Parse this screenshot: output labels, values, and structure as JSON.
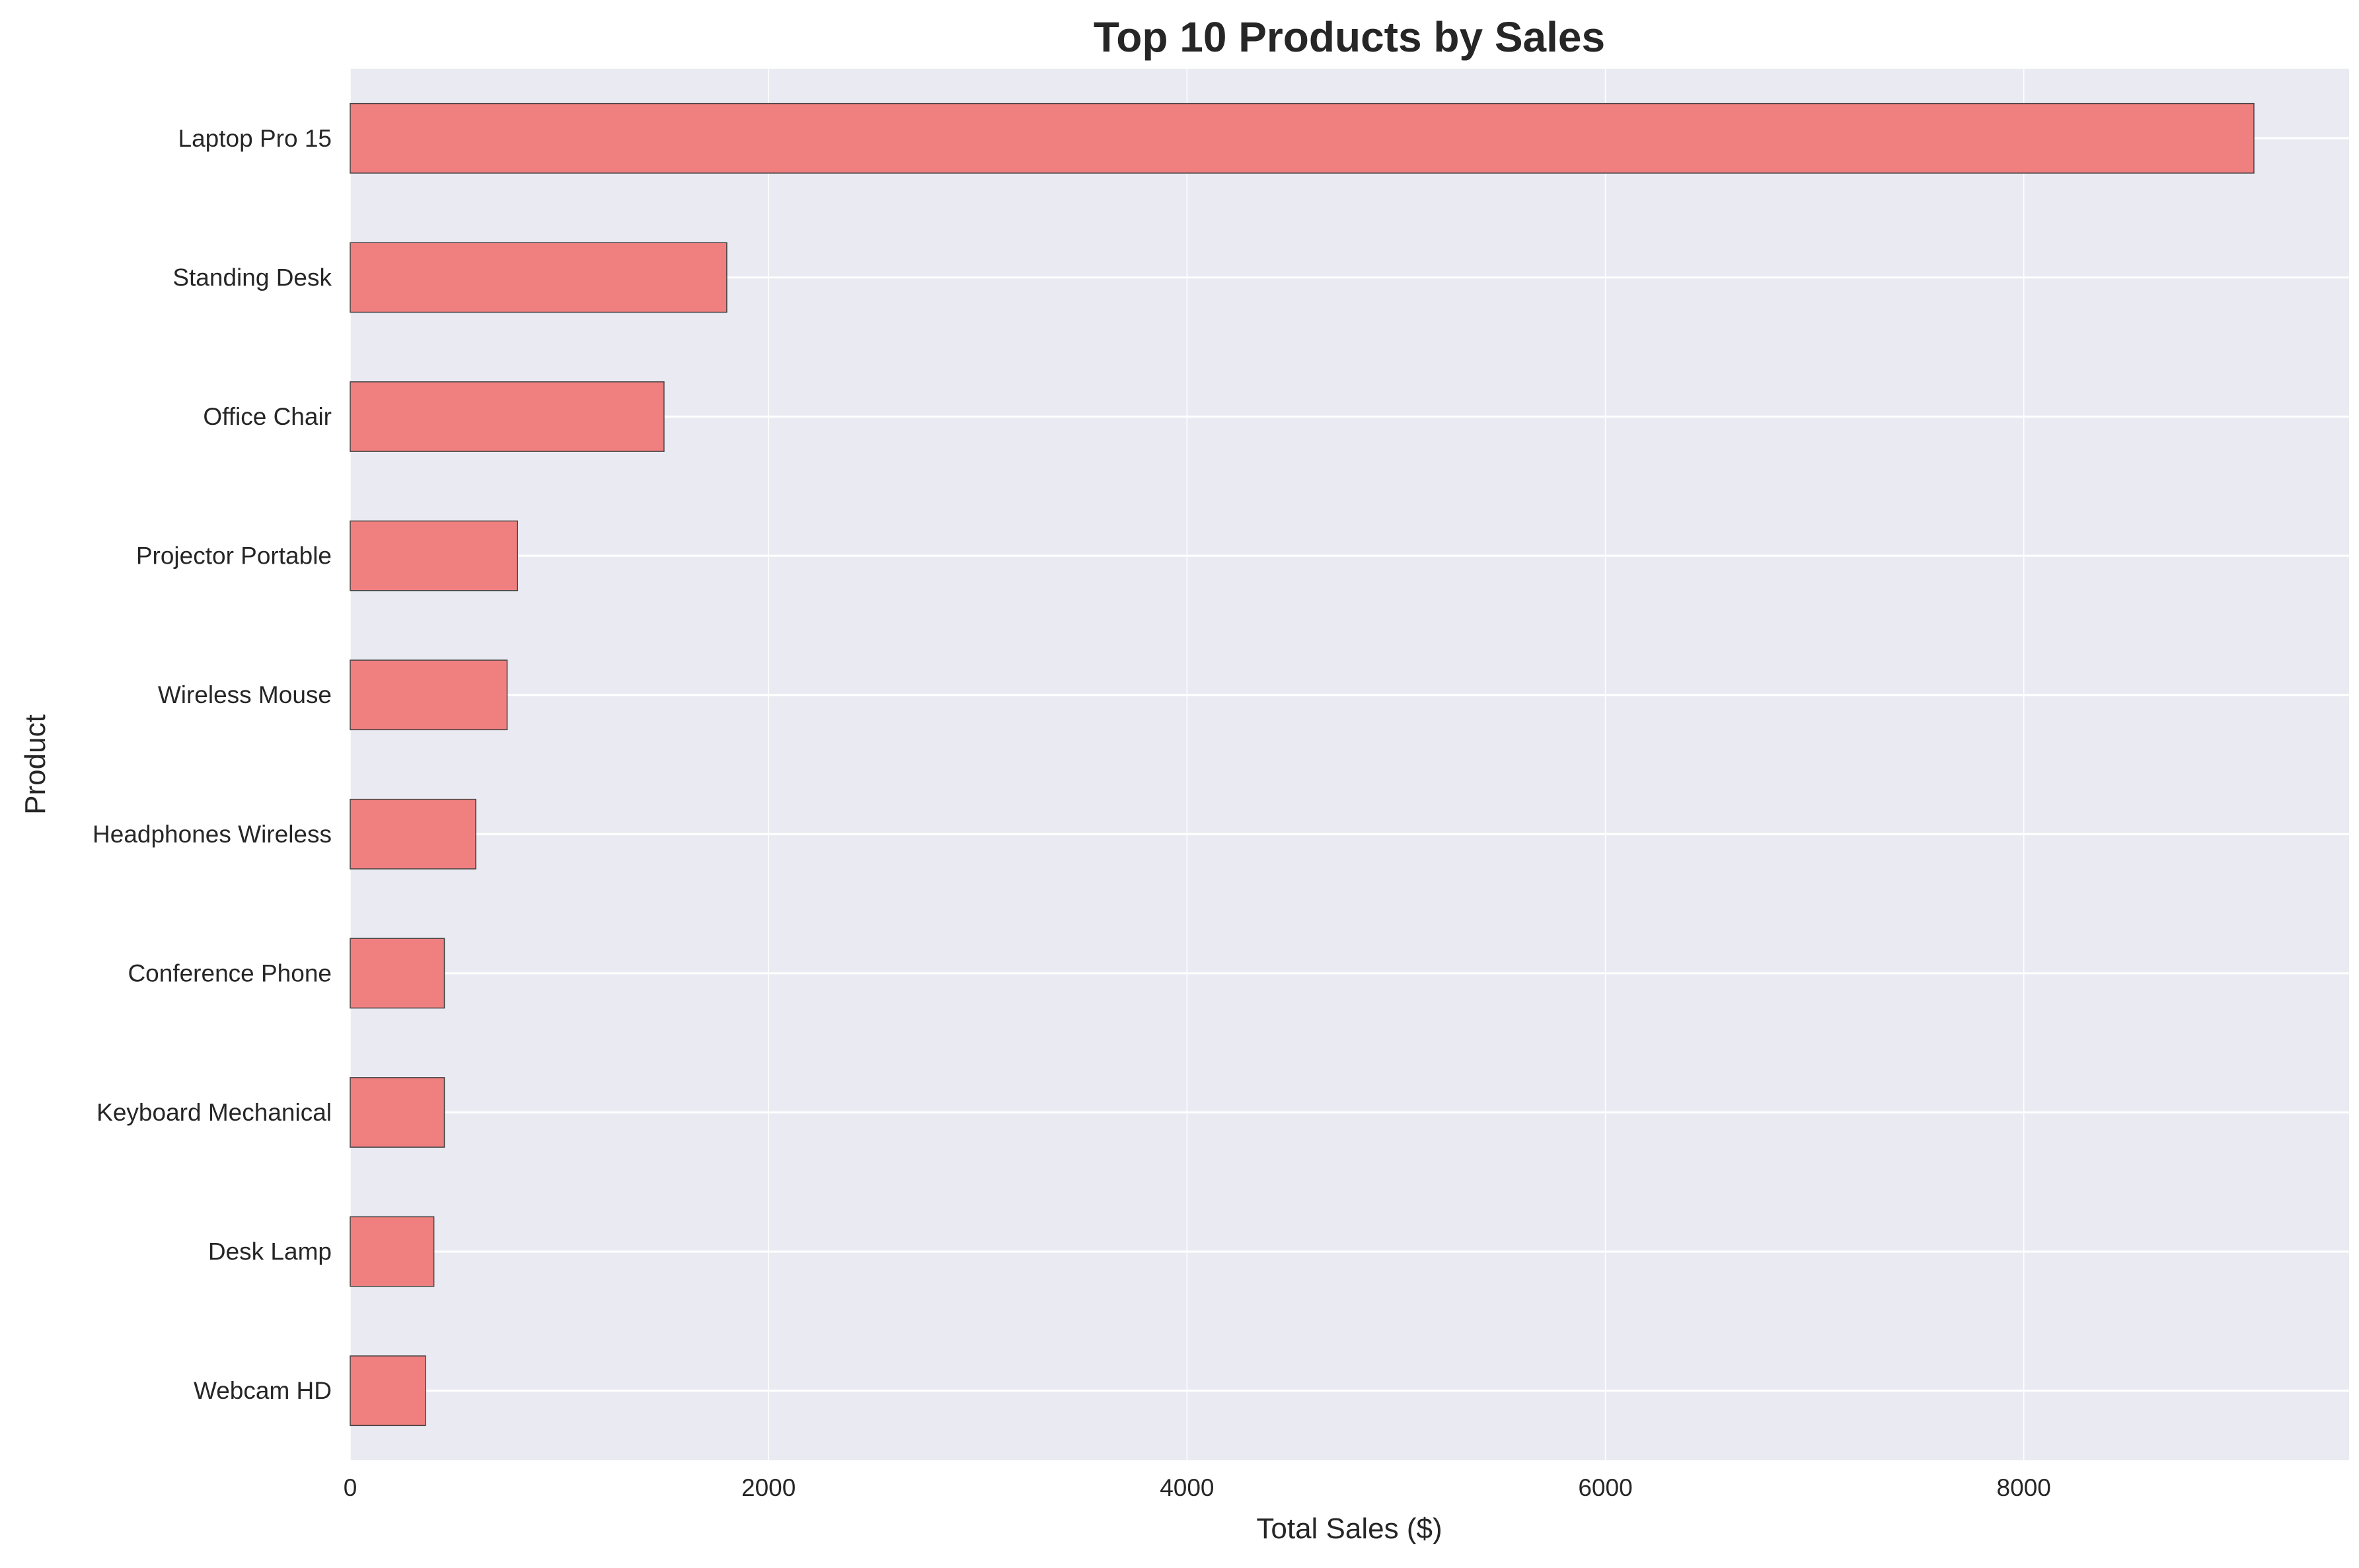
{
  "chart_data": {
    "type": "bar",
    "orientation": "horizontal",
    "title": "Top 10 Products by Sales",
    "xlabel": "Total Sales ($)",
    "ylabel": "Product",
    "categories": [
      "Laptop Pro 15",
      "Standing Desk",
      "Office Chair",
      "Projector Portable",
      "Wireless Mouse",
      "Headphones Wireless",
      "Conference Phone",
      "Keyboard Mechanical",
      "Desk Lamp",
      "Webcam HD"
    ],
    "values": [
      9100,
      1800,
      1500,
      800,
      750,
      600,
      450,
      450,
      400,
      360
    ],
    "xlim": [
      0,
      9555
    ],
    "xticks": [
      0,
      2000,
      4000,
      6000,
      8000
    ],
    "xtick_labels": [
      "0",
      "2000",
      "4000",
      "6000",
      "8000"
    ],
    "grid": true,
    "legend": "none",
    "colors": {
      "bar_fill": "#f08080",
      "bar_edge": "#444444",
      "plot_background": "#eaeaf2",
      "grid": "#ffffff",
      "text": "#262626"
    }
  }
}
